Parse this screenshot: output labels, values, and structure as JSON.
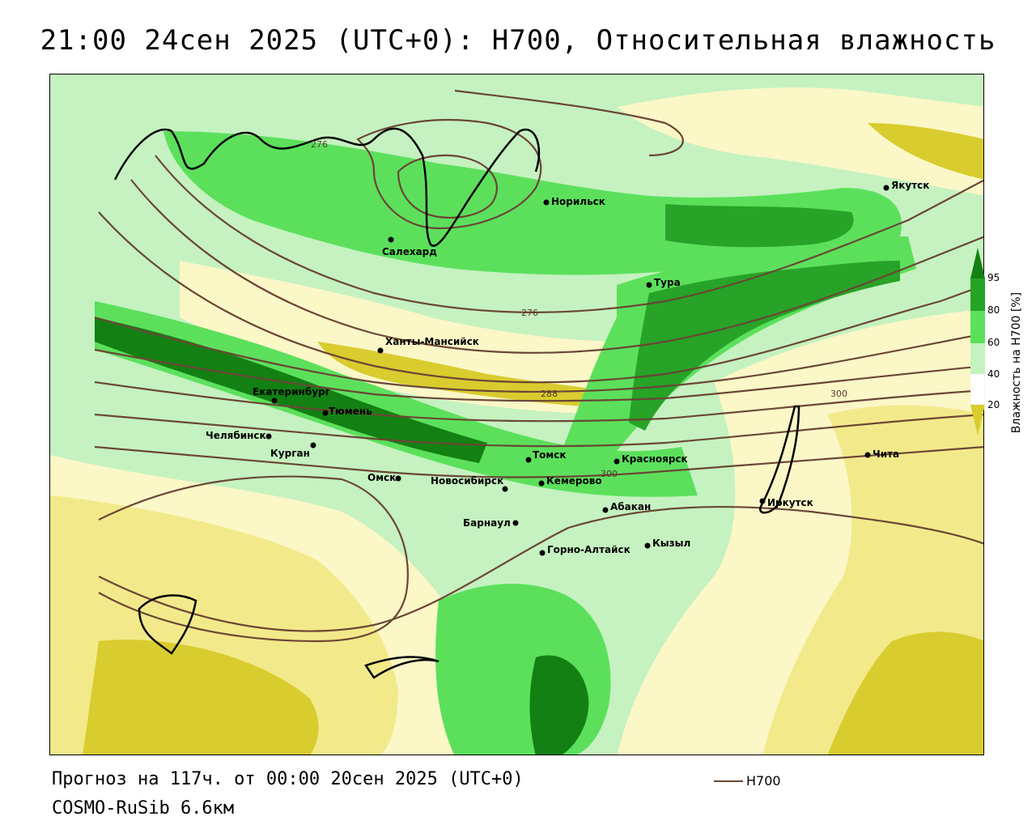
{
  "title": "21:00 24сен 2025 (UTC+0): H700, Относительная влажность",
  "footer": {
    "forecast": "Прогноз на 117ч. от 00:00 20сен 2025 (UTC+0)",
    "model": "COSMO-RuSib 6.6км"
  },
  "line_legend": {
    "label": "H700",
    "color": "#6b4636"
  },
  "legend": {
    "title": "Влажность на H700 [%]",
    "ticks": [
      "95",
      "80",
      "60",
      "40",
      "20"
    ],
    "colors": {
      "dry": "#d9cc2e",
      "low": "#f2ea8a",
      "mid": "#fbf7c7",
      "neutral": "#ffffff",
      "moist": "#c5f2c0",
      "wet": "#5ce05c",
      "very_wet": "#27a327",
      "saturated": "#138013"
    }
  },
  "isohypse_labels": [
    "276",
    "276",
    "288",
    "300",
    "300"
  ],
  "cities": [
    {
      "name": "Якутск"
    },
    {
      "name": "Норильск"
    },
    {
      "name": "Салехард"
    },
    {
      "name": "Тура"
    },
    {
      "name": "Ханты-Мансийск"
    },
    {
      "name": "Екатеринбург"
    },
    {
      "name": "Тюмень"
    },
    {
      "name": "Челябинск"
    },
    {
      "name": "Курган"
    },
    {
      "name": "Омск"
    },
    {
      "name": "Новосибирск"
    },
    {
      "name": "Томск"
    },
    {
      "name": "Кемерово"
    },
    {
      "name": "Красноярск"
    },
    {
      "name": "Барнаул"
    },
    {
      "name": "Абакан"
    },
    {
      "name": "Иркутск"
    },
    {
      "name": "Чита"
    },
    {
      "name": "Кызыл"
    },
    {
      "name": "Горно-Алтайск"
    }
  ]
}
